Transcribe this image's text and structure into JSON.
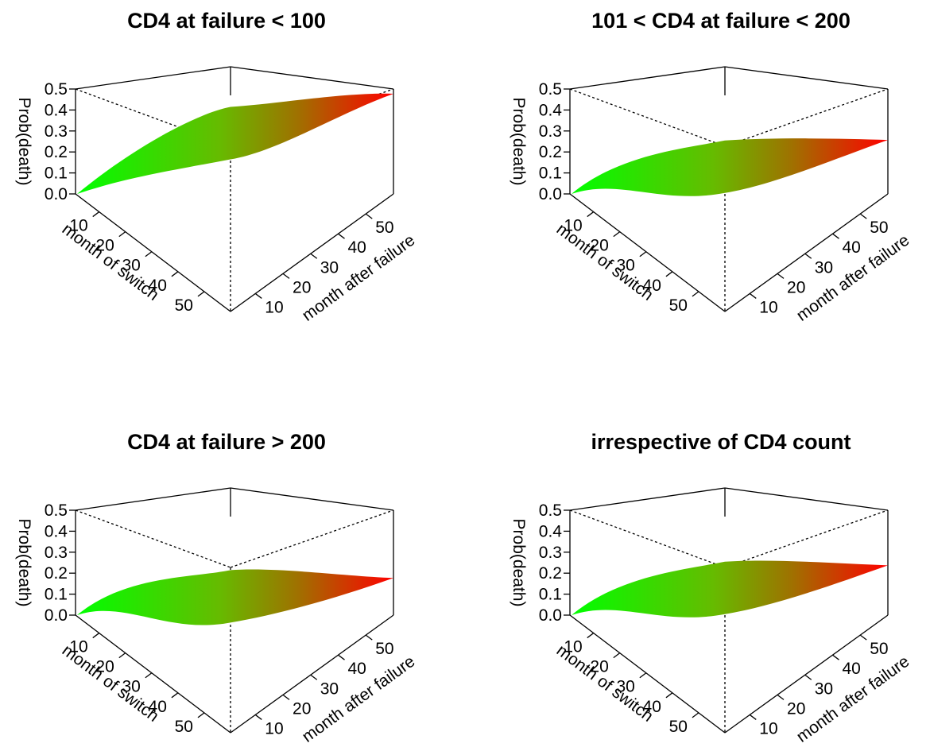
{
  "chart_data": [
    {
      "type": "surface3d",
      "title": "CD4 at failure < 100",
      "xlabel": "month of switch",
      "ylabel": "month after failure",
      "zlabel": "Prob(death)",
      "x_ticks": [
        "10",
        "20",
        "30",
        "40",
        "50"
      ],
      "y_ticks": [
        "10",
        "20",
        "30",
        "40",
        "50"
      ],
      "z_ticks": [
        "0.0",
        "0.1",
        "0.2",
        "0.3",
        "0.4",
        "0.5"
      ],
      "xlim": [
        1,
        60
      ],
      "ylim": [
        1,
        60
      ],
      "zlim": [
        0,
        0.5
      ],
      "color_low": "#00ff00",
      "color_high": "#ff0000",
      "surface": {
        "z_at_start": 0.0,
        "z_ridge": 0.46,
        "z_far_corner": 0.5
      }
    },
    {
      "type": "surface3d",
      "title": "101 < CD4 at failure < 200",
      "xlabel": "month of switch",
      "ylabel": "month after failure",
      "zlabel": "Prob(death)",
      "x_ticks": [
        "10",
        "20",
        "30",
        "40",
        "50"
      ],
      "y_ticks": [
        "10",
        "20",
        "30",
        "40",
        "50"
      ],
      "z_ticks": [
        "0.0",
        "0.1",
        "0.2",
        "0.3",
        "0.4",
        "0.5"
      ],
      "xlim": [
        1,
        60
      ],
      "ylim": [
        1,
        60
      ],
      "zlim": [
        0,
        0.5
      ],
      "color_low": "#00ff00",
      "color_high": "#ff0000",
      "surface": {
        "z_at_start": 0.0,
        "z_ridge": 0.3,
        "z_far_corner": 0.28
      }
    },
    {
      "type": "surface3d",
      "title": "CD4 at failure > 200",
      "xlabel": "month of switch",
      "ylabel": "month after failure",
      "zlabel": "Prob(death)",
      "x_ticks": [
        "10",
        "20",
        "30",
        "40",
        "50"
      ],
      "y_ticks": [
        "10",
        "20",
        "30",
        "40",
        "50"
      ],
      "z_ticks": [
        "0.0",
        "0.1",
        "0.2",
        "0.3",
        "0.4",
        "0.5"
      ],
      "xlim": [
        1,
        60
      ],
      "ylim": [
        1,
        60
      ],
      "zlim": [
        0,
        0.5
      ],
      "color_low": "#00ff00",
      "color_high": "#ff0000",
      "surface": {
        "z_at_start": 0.0,
        "z_ridge": 0.26,
        "z_far_corner": 0.2
      }
    },
    {
      "type": "surface3d",
      "title": "irrespective of CD4 count",
      "xlabel": "month of switch",
      "ylabel": "month after failure",
      "zlabel": "Prob(death)",
      "x_ticks": [
        "10",
        "20",
        "30",
        "40",
        "50"
      ],
      "y_ticks": [
        "10",
        "20",
        "30",
        "40",
        "50"
      ],
      "z_ticks": [
        "0.0",
        "0.1",
        "0.2",
        "0.3",
        "0.4",
        "0.5"
      ],
      "xlim": [
        1,
        60
      ],
      "ylim": [
        1,
        60
      ],
      "zlim": [
        0,
        0.5
      ],
      "color_low": "#00ff00",
      "color_high": "#ff0000",
      "surface": {
        "z_at_start": 0.0,
        "z_ridge": 0.3,
        "z_far_corner": 0.26
      }
    }
  ]
}
